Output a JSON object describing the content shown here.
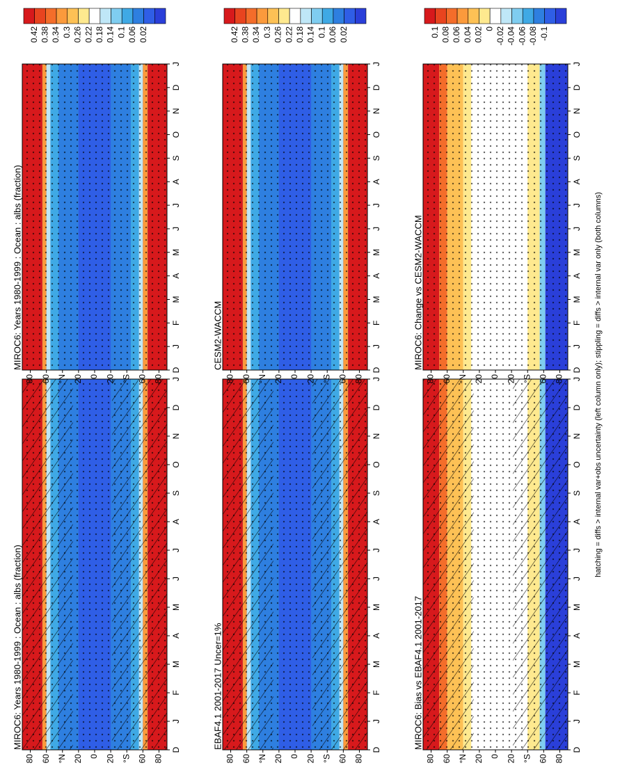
{
  "footnote": "hatching = diffs > internal var+obs uncertainty (left column only); stippling = diffs > internal var only (both columns)",
  "months": [
    "D",
    "J",
    "F",
    "M",
    "A",
    "M",
    "J",
    "J",
    "A",
    "S",
    "O",
    "N",
    "D",
    "J"
  ],
  "lat_ticks": [
    "80",
    "60",
    "°N",
    "20",
    "0",
    "20",
    "°S",
    "60",
    "80"
  ],
  "colorbar_abs": [
    "0.42",
    "0.38",
    "0.34",
    "0.3",
    "0.26",
    "0.22",
    "0.18",
    "0.14",
    "0.1",
    "0.06",
    "0.02"
  ],
  "colorbar_diff": [
    "0.1",
    "0.08",
    "0.06",
    "0.04",
    "0.02",
    "0",
    "-0.02",
    "-0.04",
    "-0.06",
    "-0.08",
    "-0.1"
  ],
  "colors_abs": [
    "#d7191c",
    "#e8441f",
    "#f46d2a",
    "#fb9a3c",
    "#fdc155",
    "#fee98f",
    "#ffffff",
    "#bfe7f7",
    "#7fcdf0",
    "#3fa9e5",
    "#2e7fe0",
    "#2f5ee6",
    "#2a3fd9"
  ],
  "colors_diff": [
    "#d7191c",
    "#e8441f",
    "#f46d2a",
    "#fb9a3c",
    "#fdc155",
    "#fee98f",
    "#ffffff",
    "#bfe7f7",
    "#7fcdf0",
    "#3fa9e5",
    "#2e7fe0",
    "#2f5ee6",
    "#2a3fd9"
  ],
  "chart_data": [
    {
      "type": "heatmap",
      "title": "MIROC6: Years 1980-1999 : Ocean : albs (fraction)",
      "position": "row1-left",
      "colorbar": "abs",
      "x": [
        "D",
        "J",
        "F",
        "M",
        "A",
        "M",
        "J",
        "J",
        "A",
        "S",
        "O",
        "N",
        "D",
        "J"
      ],
      "y_range": [
        -90,
        90
      ],
      "summary": {
        "polar_values": 0.42,
        "midlat_values": 0.14,
        "tropics_values": 0.06
      },
      "hatching": true,
      "stippling": true
    },
    {
      "type": "heatmap",
      "title": "MIROC6: Years 1980-1999 : Ocean : albs (fraction)",
      "position": "row1-right",
      "colorbar": "abs",
      "x": [
        "D",
        "J",
        "F",
        "M",
        "A",
        "M",
        "J",
        "J",
        "A",
        "S",
        "O",
        "N",
        "D",
        "J"
      ],
      "y_range": [
        -90,
        90
      ],
      "summary": {
        "polar_values": 0.42,
        "midlat_values": 0.1,
        "tropics_values": 0.06
      },
      "hatching": false,
      "stippling": true
    },
    {
      "type": "heatmap",
      "title": "EBAF4.1 2001-2017 Uncer=1%",
      "position": "row2-left",
      "colorbar": "abs",
      "x": [
        "D",
        "J",
        "F",
        "M",
        "A",
        "M",
        "J",
        "J",
        "A",
        "S",
        "O",
        "N",
        "D",
        "J"
      ],
      "y_range": [
        -90,
        90
      ],
      "summary": {
        "polar_values": 0.42,
        "midlat_values": 0.14,
        "tropics_values": 0.06
      },
      "hatching": true,
      "stippling": true
    },
    {
      "type": "heatmap",
      "title": "CESM2-WACCM",
      "position": "row2-right",
      "colorbar": "abs",
      "x": [
        "D",
        "J",
        "F",
        "M",
        "A",
        "M",
        "J",
        "J",
        "A",
        "S",
        "O",
        "N",
        "D",
        "J"
      ],
      "y_range": [
        -90,
        90
      ],
      "summary": {
        "polar_values": 0.42,
        "midlat_values": 0.1,
        "tropics_values": 0.06
      },
      "hatching": false,
      "stippling": true
    },
    {
      "type": "heatmap",
      "title": "MIROC6: Bias vs EBAF4.1 2001-2017",
      "position": "row3-left",
      "colorbar": "diff",
      "x": [
        "D",
        "J",
        "F",
        "M",
        "A",
        "M",
        "J",
        "J",
        "A",
        "S",
        "O",
        "N",
        "D",
        "J"
      ],
      "y_range": [
        -90,
        90
      ],
      "summary": {
        "north_polar": 0.1,
        "north_midlat": 0.04,
        "tropics": 0,
        "south_midlat": 0.02,
        "south_polar": -0.1
      },
      "hatching": true,
      "stippling": true
    },
    {
      "type": "heatmap",
      "title": "MIROC6: Change vs CESM2-WACCM",
      "position": "row3-right",
      "colorbar": "diff",
      "x": [
        "D",
        "J",
        "F",
        "M",
        "A",
        "M",
        "J",
        "J",
        "A",
        "S",
        "O",
        "N",
        "D",
        "J"
      ],
      "y_range": [
        -90,
        90
      ],
      "summary": {
        "north_polar": 0.1,
        "north_midlat": 0.02,
        "tropics": 0,
        "south_midlat": 0.02,
        "south_polar": -0.1
      },
      "hatching": false,
      "stippling": true
    }
  ]
}
